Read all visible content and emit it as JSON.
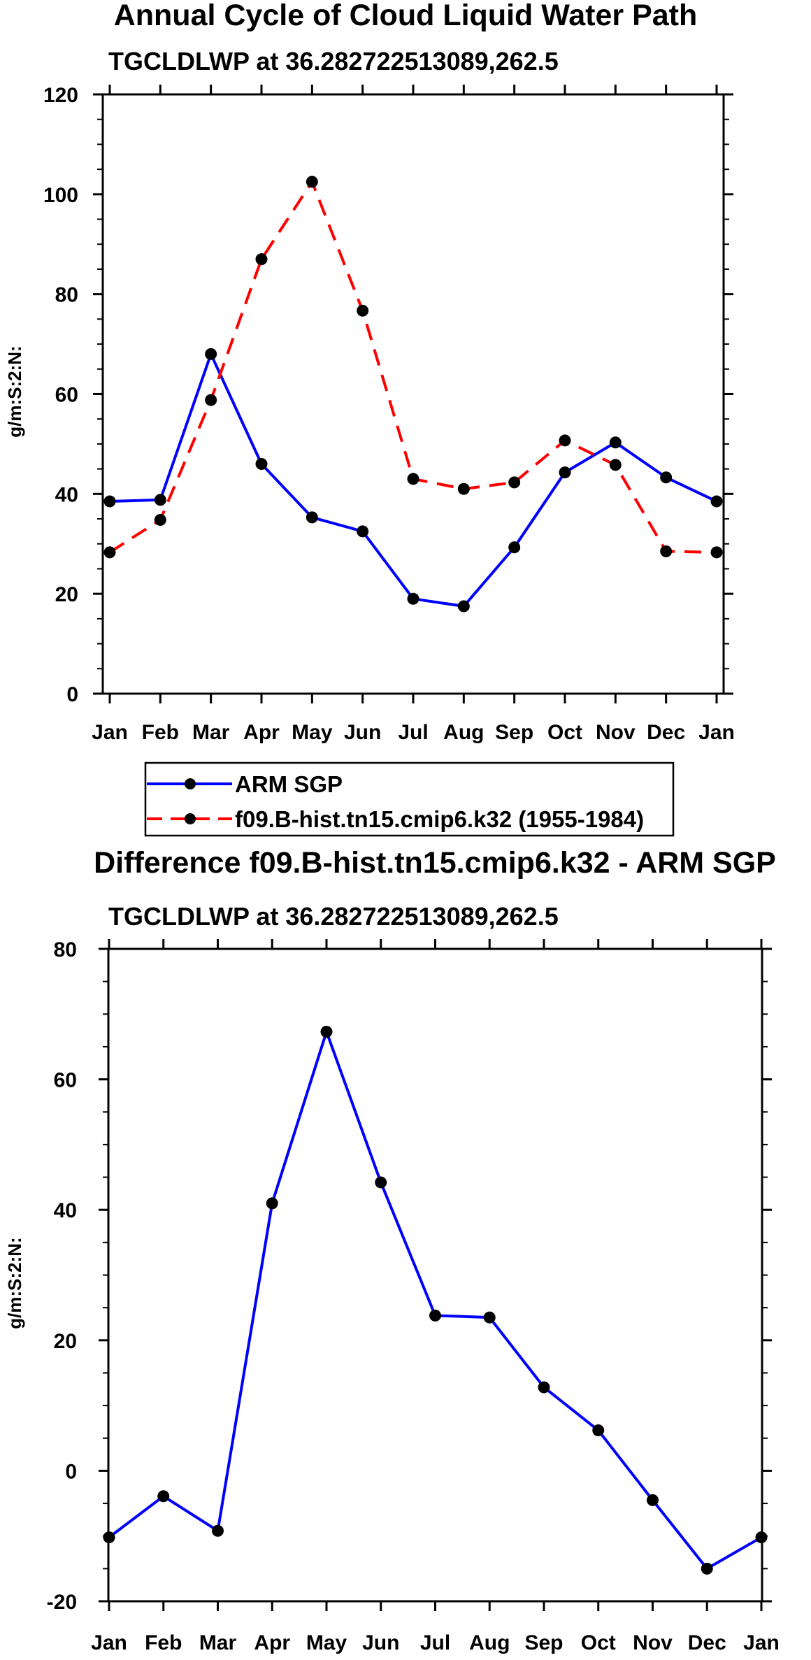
{
  "colors": {
    "obs": "#0000ff",
    "model": "#ff0000",
    "axis": "#000000",
    "marker": "#000000"
  },
  "chart_data": [
    {
      "type": "line",
      "title": "Annual Cycle of Cloud Liquid Water Path",
      "subtitle": "TGCLDLWP at 36.282722513089,262.5",
      "ylabel": "g/m:S:2:N:",
      "xlabel": "",
      "ylim": [
        0,
        120
      ],
      "yticks": [
        0,
        20,
        40,
        60,
        80,
        100,
        120
      ],
      "yticks_labels": [
        "0",
        "20",
        "40",
        "60",
        "80",
        "100",
        "120"
      ],
      "categories": [
        "Jan",
        "Feb",
        "Mar",
        "Apr",
        "May",
        "Jun",
        "Jul",
        "Aug",
        "Sep",
        "Oct",
        "Nov",
        "Dec",
        "Jan"
      ],
      "grid": false,
      "series": [
        {
          "name": "ARM SGP",
          "style": "solid",
          "values": [
            38.5,
            38.8,
            68.0,
            46.0,
            35.3,
            32.5,
            19.0,
            17.5,
            29.3,
            44.3,
            50.3,
            43.3,
            38.5
          ]
        },
        {
          "name": "f09.B-hist.tn15.cmip6.k32 (1955-1984)",
          "style": "dashed",
          "values": [
            28.3,
            34.8,
            58.8,
            87.0,
            102.5,
            76.7,
            43.0,
            41.0,
            42.3,
            50.7,
            45.8,
            28.5,
            28.3
          ]
        }
      ],
      "legend": {
        "placement": "bottom",
        "entries": [
          "ARM SGP",
          "f09.B-hist.tn15.cmip6.k32 (1955-1984)"
        ]
      }
    },
    {
      "type": "line",
      "title": "Difference f09.B-hist.tn15.cmip6.k32 - ARM SGP",
      "subtitle": "TGCLDLWP at 36.282722513089,262.5",
      "ylabel": "g/m:S:2:N:",
      "xlabel": "",
      "ylim": [
        -20,
        80
      ],
      "yticks": [
        -20,
        0,
        20,
        40,
        60,
        80
      ],
      "yticks_labels": [
        "-20",
        "0",
        "20",
        "40",
        "60",
        "80"
      ],
      "categories": [
        "Jan",
        "Feb",
        "Mar",
        "Apr",
        "May",
        "Jun",
        "Jul",
        "Aug",
        "Sep",
        "Oct",
        "Nov",
        "Dec",
        "Jan"
      ],
      "grid": false,
      "series": [
        {
          "name": "Difference",
          "style": "solid",
          "values": [
            -10.2,
            -3.9,
            -9.2,
            41.0,
            67.3,
            44.2,
            23.8,
            23.5,
            12.8,
            6.2,
            -4.5,
            -15.0,
            -10.2
          ]
        }
      ]
    }
  ]
}
